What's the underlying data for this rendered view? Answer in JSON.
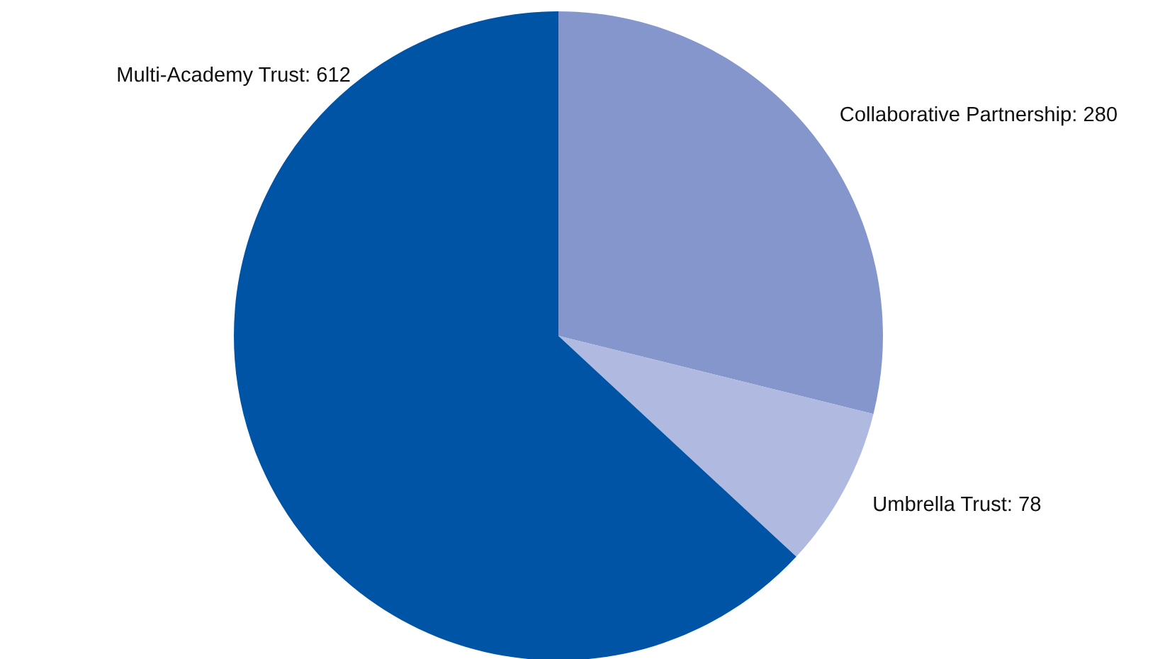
{
  "chart_data": {
    "type": "pie",
    "categories": [
      "Collaborative Partnership: 280",
      "Umbrella Trust: 78",
      "Multi-Academy Trust: 612"
    ],
    "values": [
      280,
      78,
      612
    ],
    "colors": [
      "#8496cb",
      "#b0b9e0",
      "#0054a6"
    ]
  }
}
